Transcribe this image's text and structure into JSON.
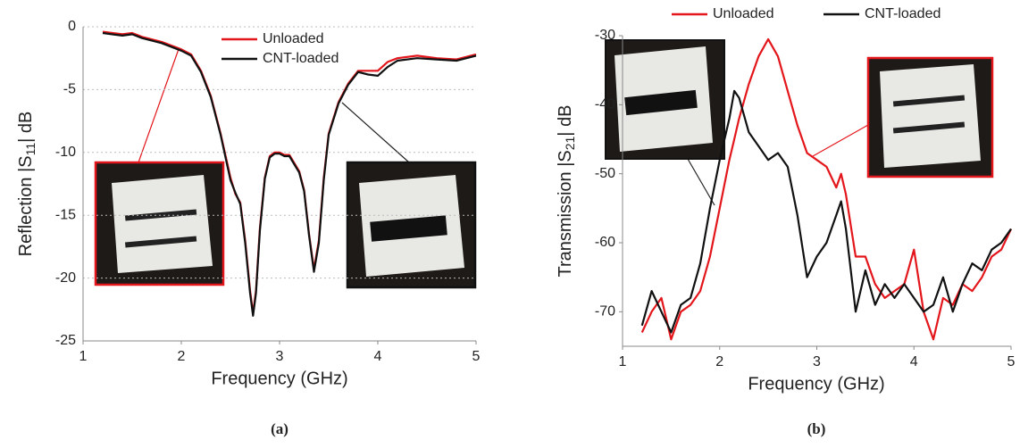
{
  "chart_data": [
    {
      "type": "line",
      "xlabel": "Frequency (GHz)",
      "ylabel": [
        "Reflection |S",
        "11",
        "| dB"
      ],
      "caption": "(a)",
      "xlim": [
        1,
        5
      ],
      "xticks": [
        1,
        2,
        3,
        4,
        5
      ],
      "ylim": [
        -25,
        0
      ],
      "yticks": [
        -25,
        -20,
        -15,
        -10,
        -5,
        0
      ],
      "grid": true,
      "legend": "upper right",
      "x": [
        1.2,
        1.4,
        1.5,
        1.6,
        1.8,
        2.0,
        2.1,
        2.2,
        2.3,
        2.4,
        2.5,
        2.55,
        2.6,
        2.65,
        2.7,
        2.73,
        2.76,
        2.8,
        2.85,
        2.9,
        2.95,
        3.0,
        3.05,
        3.1,
        3.2,
        3.25,
        3.3,
        3.35,
        3.4,
        3.45,
        3.5,
        3.6,
        3.7,
        3.8,
        3.9,
        4.0,
        4.1,
        4.2,
        4.4,
        4.6,
        4.8,
        5.0
      ],
      "series": [
        {
          "name": "Unloaded",
          "color": "#e3161b",
          "values": [
            -0.4,
            -0.6,
            -0.5,
            -0.8,
            -1.2,
            -1.8,
            -2.2,
            -3.5,
            -5.5,
            -8.5,
            -12,
            -13.3,
            -14,
            -17,
            -21,
            -22.8,
            -21,
            -16,
            -12,
            -10.3,
            -10,
            -10,
            -10.2,
            -10.2,
            -11.5,
            -13,
            -16.5,
            -19.3,
            -17,
            -12,
            -8.5,
            -6,
            -4.5,
            -3.5,
            -3.5,
            -3.5,
            -2.8,
            -2.5,
            -2.3,
            -2.5,
            -2.6,
            -2.2
          ]
        },
        {
          "name": "CNT-loaded",
          "color": "#111111",
          "values": [
            -0.5,
            -0.7,
            -0.6,
            -0.9,
            -1.3,
            -1.9,
            -2.3,
            -3.6,
            -5.6,
            -8.6,
            -12.2,
            -13.2,
            -14.1,
            -17.2,
            -21.2,
            -23,
            -21.2,
            -16.2,
            -12.1,
            -10.4,
            -10.1,
            -10.1,
            -10.3,
            -10.3,
            -11.6,
            -13.1,
            -16.6,
            -19.5,
            -17.2,
            -12.2,
            -8.6,
            -6.1,
            -4.6,
            -3.6,
            -3.8,
            -3.9,
            -3.2,
            -2.7,
            -2.5,
            -2.6,
            -2.7,
            -2.3
          ]
        }
      ]
    },
    {
      "type": "line",
      "xlabel": "Frequency (GHz)",
      "ylabel": [
        "Transmission |S",
        "21",
        "| dB"
      ],
      "caption": "(b)",
      "xlim": [
        1,
        5
      ],
      "xticks": [
        1,
        2,
        3,
        4,
        5
      ],
      "ylim": [
        -75,
        -30
      ],
      "yticks": [
        -70,
        -60,
        -50,
        -40,
        -30
      ],
      "grid": false,
      "legend": "top",
      "x": [
        1.2,
        1.3,
        1.4,
        1.5,
        1.6,
        1.7,
        1.8,
        1.9,
        2.0,
        2.1,
        2.15,
        2.2,
        2.3,
        2.4,
        2.5,
        2.6,
        2.7,
        2.8,
        2.9,
        3.0,
        3.1,
        3.2,
        3.25,
        3.3,
        3.4,
        3.5,
        3.6,
        3.7,
        3.8,
        3.9,
        4.0,
        4.1,
        4.2,
        4.3,
        4.4,
        4.5,
        4.6,
        4.7,
        4.8,
        4.9,
        5.0
      ],
      "series": [
        {
          "name": "Unloaded",
          "color": "#e3161b",
          "values": [
            -73,
            -70,
            -68,
            -74,
            -70,
            -69,
            -67,
            -62,
            -55,
            -48,
            -45,
            -42,
            -37,
            -33,
            -30.5,
            -33,
            -38,
            -43,
            -47,
            -48,
            -49,
            -52,
            -50,
            -53,
            -62,
            -62,
            -66,
            -68,
            -67,
            -66,
            -61,
            -70,
            -74,
            -68,
            -69,
            -66,
            -67,
            -65,
            -62,
            -61,
            -58
          ]
        },
        {
          "name": "CNT-loaded",
          "color": "#111111",
          "values": [
            -72,
            -67,
            -70,
            -73,
            -69,
            -68,
            -63,
            -55,
            -48,
            -42,
            -38,
            -39,
            -44,
            -46,
            -48,
            -47,
            -49,
            -56,
            -65,
            -62,
            -60,
            -56,
            -54,
            -58,
            -70,
            -64,
            -69,
            -66,
            -68,
            -66,
            -68,
            -70,
            -69,
            -65,
            -70,
            -66,
            -63,
            -64,
            -61,
            -60,
            -58
          ]
        }
      ]
    }
  ]
}
